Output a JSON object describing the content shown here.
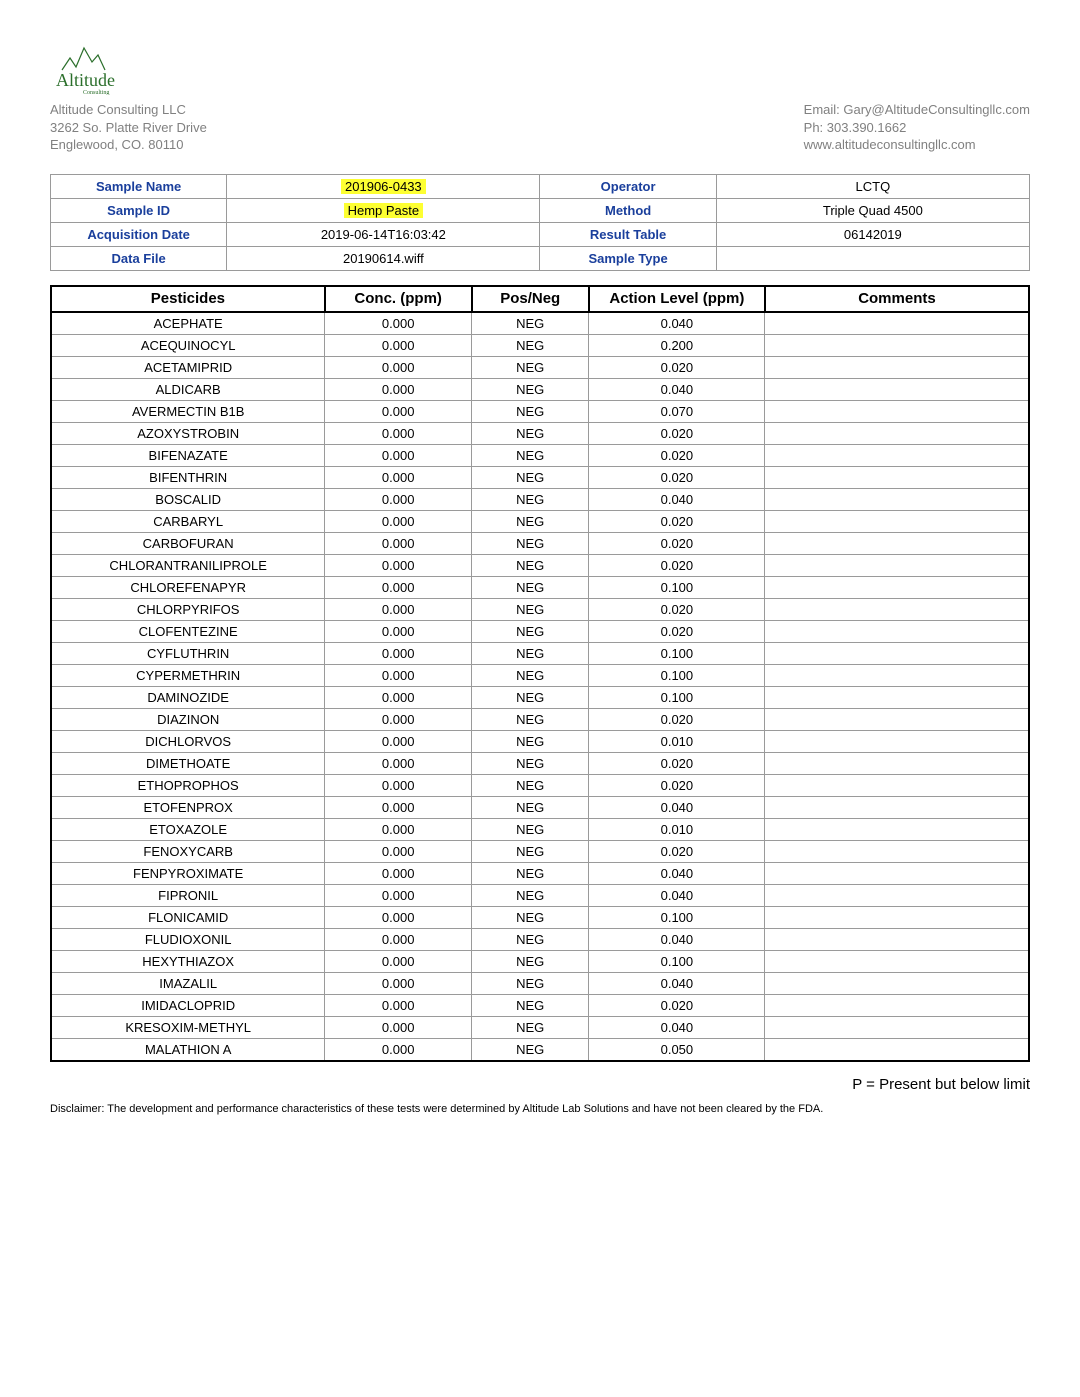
{
  "company": {
    "name": "Altitude Consulting LLC",
    "addr1": "3262 So. Platte River Drive",
    "addr2": "Englewood, CO.  80110",
    "email": "Email: Gary@AltitudeConsultingllc.com",
    "phone": "Ph: 303.390.1662",
    "web": "www.altitudeconsultingllc.com"
  },
  "info": {
    "labels": {
      "sample_name": "Sample Name",
      "sample_id": "Sample ID",
      "acq_date": "Acquisition Date",
      "data_file": "Data File",
      "operator": "Operator",
      "method": "Method",
      "result_table": "Result Table",
      "sample_type": "Sample Type"
    },
    "values": {
      "sample_name": "201906-0433",
      "sample_id": "Hemp Paste",
      "acq_date": "2019-06-14T16:03:42",
      "data_file": "20190614.wiff",
      "operator": "LCTQ",
      "method": "Triple Quad 4500",
      "result_table": "06142019",
      "sample_type": ""
    },
    "highlight": {
      "sample_name": true,
      "sample_id": true
    }
  },
  "headers": {
    "pesticides": "Pesticides",
    "conc": "Conc. (ppm)",
    "posneg": "Pos/Neg",
    "action": "Action Level (ppm)",
    "comments": "Comments"
  },
  "rows": [
    {
      "p": "ACEPHATE",
      "c": "0.000",
      "pn": "NEG",
      "al": "0.040",
      "cm": ""
    },
    {
      "p": "ACEQUINOCYL",
      "c": "0.000",
      "pn": "NEG",
      "al": "0.200",
      "cm": ""
    },
    {
      "p": "ACETAMIPRID",
      "c": "0.000",
      "pn": "NEG",
      "al": "0.020",
      "cm": ""
    },
    {
      "p": "ALDICARB",
      "c": "0.000",
      "pn": "NEG",
      "al": "0.040",
      "cm": ""
    },
    {
      "p": "AVERMECTIN B1B",
      "c": "0.000",
      "pn": "NEG",
      "al": "0.070",
      "cm": ""
    },
    {
      "p": "AZOXYSTROBIN",
      "c": "0.000",
      "pn": "NEG",
      "al": "0.020",
      "cm": ""
    },
    {
      "p": "BIFENAZATE",
      "c": "0.000",
      "pn": "NEG",
      "al": "0.020",
      "cm": ""
    },
    {
      "p": "BIFENTHRIN",
      "c": "0.000",
      "pn": "NEG",
      "al": "0.020",
      "cm": ""
    },
    {
      "p": "BOSCALID",
      "c": "0.000",
      "pn": "NEG",
      "al": "0.040",
      "cm": ""
    },
    {
      "p": "CARBARYL",
      "c": "0.000",
      "pn": "NEG",
      "al": "0.020",
      "cm": ""
    },
    {
      "p": "CARBOFURAN",
      "c": "0.000",
      "pn": "NEG",
      "al": "0.020",
      "cm": ""
    },
    {
      "p": "CHLORANTRANILIPROLE",
      "c": "0.000",
      "pn": "NEG",
      "al": "0.020",
      "cm": ""
    },
    {
      "p": "CHLOREFENAPYR",
      "c": "0.000",
      "pn": "NEG",
      "al": "0.100",
      "cm": ""
    },
    {
      "p": "CHLORPYRIFOS",
      "c": "0.000",
      "pn": "NEG",
      "al": "0.020",
      "cm": ""
    },
    {
      "p": "CLOFENTEZINE",
      "c": "0.000",
      "pn": "NEG",
      "al": "0.020",
      "cm": ""
    },
    {
      "p": "CYFLUTHRIN",
      "c": "0.000",
      "pn": "NEG",
      "al": "0.100",
      "cm": ""
    },
    {
      "p": "CYPERMETHRIN",
      "c": "0.000",
      "pn": "NEG",
      "al": "0.100",
      "cm": ""
    },
    {
      "p": "DAMINOZIDE",
      "c": "0.000",
      "pn": "NEG",
      "al": "0.100",
      "cm": ""
    },
    {
      "p": "DIAZINON",
      "c": "0.000",
      "pn": "NEG",
      "al": "0.020",
      "cm": ""
    },
    {
      "p": "DICHLORVOS",
      "c": "0.000",
      "pn": "NEG",
      "al": "0.010",
      "cm": ""
    },
    {
      "p": "DIMETHOATE",
      "c": "0.000",
      "pn": "NEG",
      "al": "0.020",
      "cm": ""
    },
    {
      "p": "ETHOPROPHOS",
      "c": "0.000",
      "pn": "NEG",
      "al": "0.020",
      "cm": ""
    },
    {
      "p": "ETOFENPROX",
      "c": "0.000",
      "pn": "NEG",
      "al": "0.040",
      "cm": ""
    },
    {
      "p": "ETOXAZOLE",
      "c": "0.000",
      "pn": "NEG",
      "al": "0.010",
      "cm": ""
    },
    {
      "p": "FENOXYCARB",
      "c": "0.000",
      "pn": "NEG",
      "al": "0.020",
      "cm": ""
    },
    {
      "p": "FENPYROXIMATE",
      "c": "0.000",
      "pn": "NEG",
      "al": "0.040",
      "cm": ""
    },
    {
      "p": "FIPRONIL",
      "c": "0.000",
      "pn": "NEG",
      "al": "0.040",
      "cm": ""
    },
    {
      "p": "FLONICAMID",
      "c": "0.000",
      "pn": "NEG",
      "al": "0.100",
      "cm": ""
    },
    {
      "p": "FLUDIOXONIL",
      "c": "0.000",
      "pn": "NEG",
      "al": "0.040",
      "cm": ""
    },
    {
      "p": "HEXYTHIAZOX",
      "c": "0.000",
      "pn": "NEG",
      "al": "0.100",
      "cm": ""
    },
    {
      "p": "IMAZALIL",
      "c": "0.000",
      "pn": "NEG",
      "al": "0.040",
      "cm": ""
    },
    {
      "p": "IMIDACLOPRID",
      "c": "0.000",
      "pn": "NEG",
      "al": "0.020",
      "cm": ""
    },
    {
      "p": "KRESOXIM-METHYL",
      "c": "0.000",
      "pn": "NEG",
      "al": "0.040",
      "cm": ""
    },
    {
      "p": "MALATHION A",
      "c": "0.000",
      "pn": "NEG",
      "al": "0.050",
      "cm": ""
    }
  ],
  "legend": "P = Present but below limit",
  "disclaimer": "Disclaimer: The development and performance characteristics of these tests were determined by Altitude Lab Solutions and have not been cleared by the FDA."
}
